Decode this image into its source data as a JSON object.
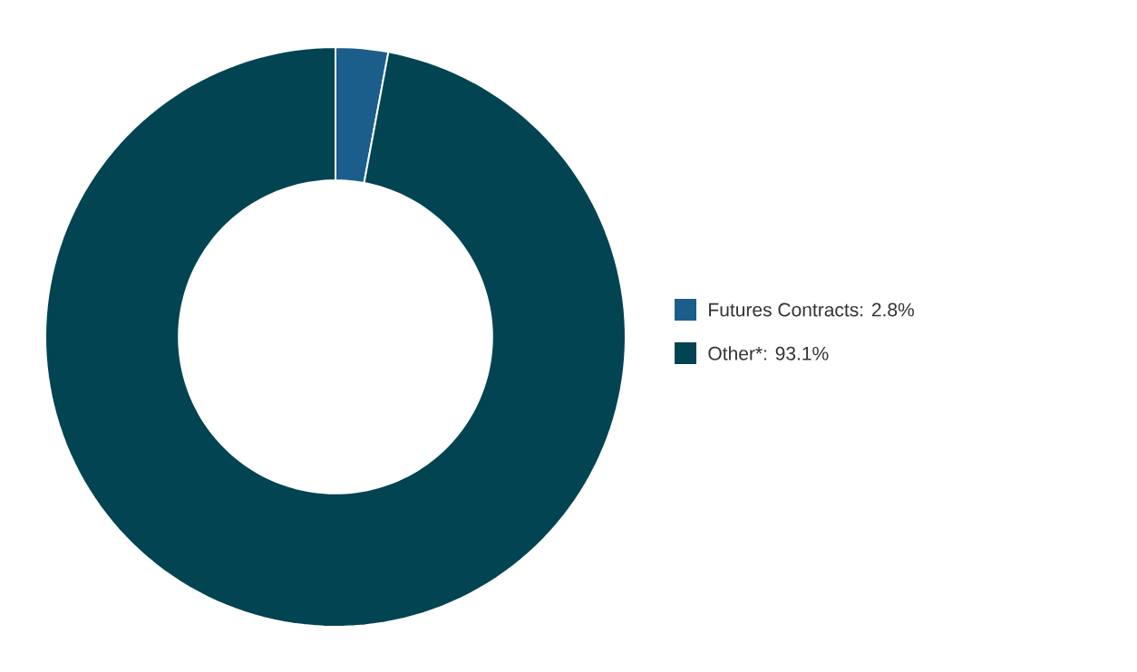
{
  "chart_data": {
    "type": "donut",
    "categories": [
      "Futures Contracts: 2.8%",
      "Other*: 93.1%"
    ],
    "values": [
      2.8,
      93.1
    ],
    "colors": [
      "#1b5e8c",
      "#024452"
    ],
    "legend": "right"
  }
}
